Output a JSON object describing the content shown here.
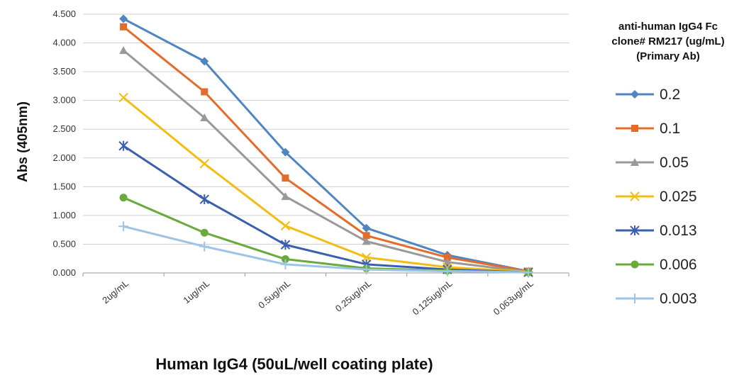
{
  "chart_data": {
    "type": "line",
    "xlabel": "Human IgG4 (50uL/well coating plate)",
    "ylabel": "Abs (405nm)",
    "ylim": [
      0,
      4.5
    ],
    "yticks": [
      "0.000",
      "0.500",
      "1.000",
      "1.500",
      "2.000",
      "2.500",
      "3.000",
      "3.500",
      "4.000",
      "4.500"
    ],
    "categories": [
      "2ug/mL",
      "1ug/mL",
      "0.5ug/mL",
      "0.25ug/mL",
      "0.125ug/mL",
      "0.063ug/mL"
    ],
    "grid": true,
    "legend_position": "right",
    "legend_title": [
      "anti-human IgG4 Fc",
      "clone# RM217 (ug/mL)",
      "(Primary Ab)"
    ],
    "series": [
      {
        "name": "0.2",
        "color": "#4f86c1",
        "marker": "diamond",
        "values": [
          4.42,
          3.68,
          2.1,
          0.78,
          0.31,
          0.03
        ]
      },
      {
        "name": "0.1",
        "color": "#e46c2a",
        "marker": "square",
        "values": [
          4.28,
          3.15,
          1.65,
          0.65,
          0.27,
          0.03
        ]
      },
      {
        "name": "0.05",
        "color": "#999999",
        "marker": "triangle",
        "values": [
          3.87,
          2.7,
          1.33,
          0.55,
          0.19,
          0.02
        ]
      },
      {
        "name": "0.025",
        "color": "#f3bd12",
        "marker": "x",
        "values": [
          3.05,
          1.9,
          0.82,
          0.27,
          0.1,
          0.02
        ]
      },
      {
        "name": "0.013",
        "color": "#3a5fb0",
        "marker": "star",
        "values": [
          2.21,
          1.28,
          0.49,
          0.15,
          0.06,
          0.01
        ]
      },
      {
        "name": "0.006",
        "color": "#6aaa3a",
        "marker": "circle",
        "values": [
          1.31,
          0.7,
          0.24,
          0.08,
          0.04,
          0.01
        ]
      },
      {
        "name": "0.003",
        "color": "#9dc3e6",
        "marker": "plus",
        "values": [
          0.81,
          0.46,
          0.15,
          0.06,
          0.03,
          0.01
        ]
      }
    ]
  }
}
